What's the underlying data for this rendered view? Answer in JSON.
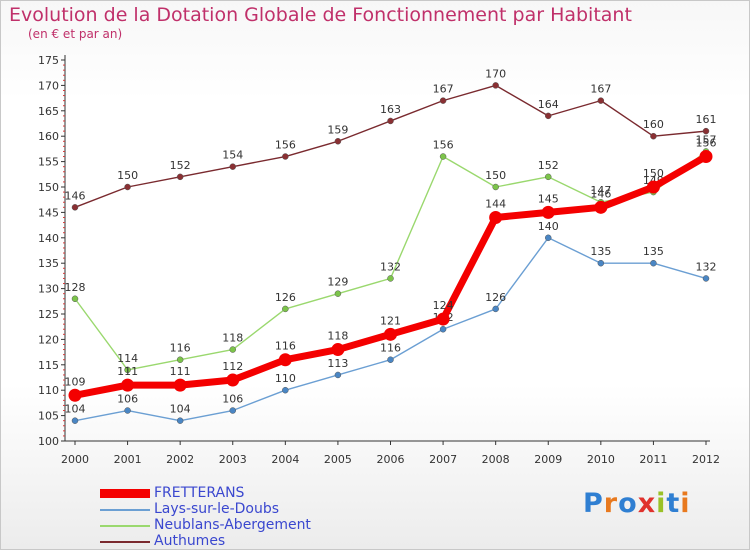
{
  "title": "Evolution de la Dotation Globale de Fonctionnement par Habitant",
  "subtitle": "(en € et par an)",
  "brand": {
    "letters": [
      "P",
      "r",
      "o",
      "x",
      "i",
      "t",
      "i"
    ],
    "colors": [
      "#2f7fd2",
      "#e8791e",
      "#2f7fd2",
      "#e0322d",
      "#9ac127",
      "#2f7fd2",
      "#e8791e"
    ]
  },
  "chart_data": {
    "type": "line",
    "title": "Evolution de la Dotation Globale de Fonctionnement par Habitant",
    "subtitle": "(en € et par an)",
    "xlabel": "",
    "ylabel": "",
    "x": [
      "2000",
      "2001",
      "2002",
      "2003",
      "2004",
      "2005",
      "2006",
      "2007",
      "2008",
      "2009",
      "2010",
      "2011",
      "2012"
    ],
    "ylim": [
      100,
      175
    ],
    "yticks": [
      100,
      105,
      110,
      115,
      120,
      125,
      130,
      135,
      140,
      145,
      150,
      155,
      160,
      165,
      170,
      175
    ],
    "grid": false,
    "legend_position": "bottom-left",
    "series": [
      {
        "name": "Authumes",
        "color": "#7a2a2f",
        "marker": "#8a3033",
        "values": [
          146,
          150,
          152,
          154,
          156,
          159,
          163,
          167,
          170,
          164,
          167,
          160,
          161
        ]
      },
      {
        "name": "Neublans-Abergement",
        "color": "#9ad86e",
        "marker": "#7cc44a",
        "values": [
          128,
          114,
          116,
          118,
          126,
          129,
          132,
          156,
          150,
          152,
          147,
          149,
          157
        ]
      },
      {
        "name": "Lays-sur-le-Doubs",
        "color": "#6b9fd3",
        "marker": "#4a86c4",
        "values": [
          104,
          106,
          104,
          106,
          110,
          113,
          116,
          122,
          126,
          140,
          135,
          135,
          132
        ]
      },
      {
        "name": "FRETTERANS",
        "color": "#f40000",
        "marker": "#f40000",
        "values": [
          109,
          111,
          111,
          112,
          116,
          118,
          121,
          124,
          144,
          145,
          146,
          150,
          156
        ]
      }
    ],
    "legend_order": [
      "FRETTERANS",
      "Lays-sur-le-Doubs",
      "Neublans-Abergement",
      "Authumes"
    ]
  }
}
